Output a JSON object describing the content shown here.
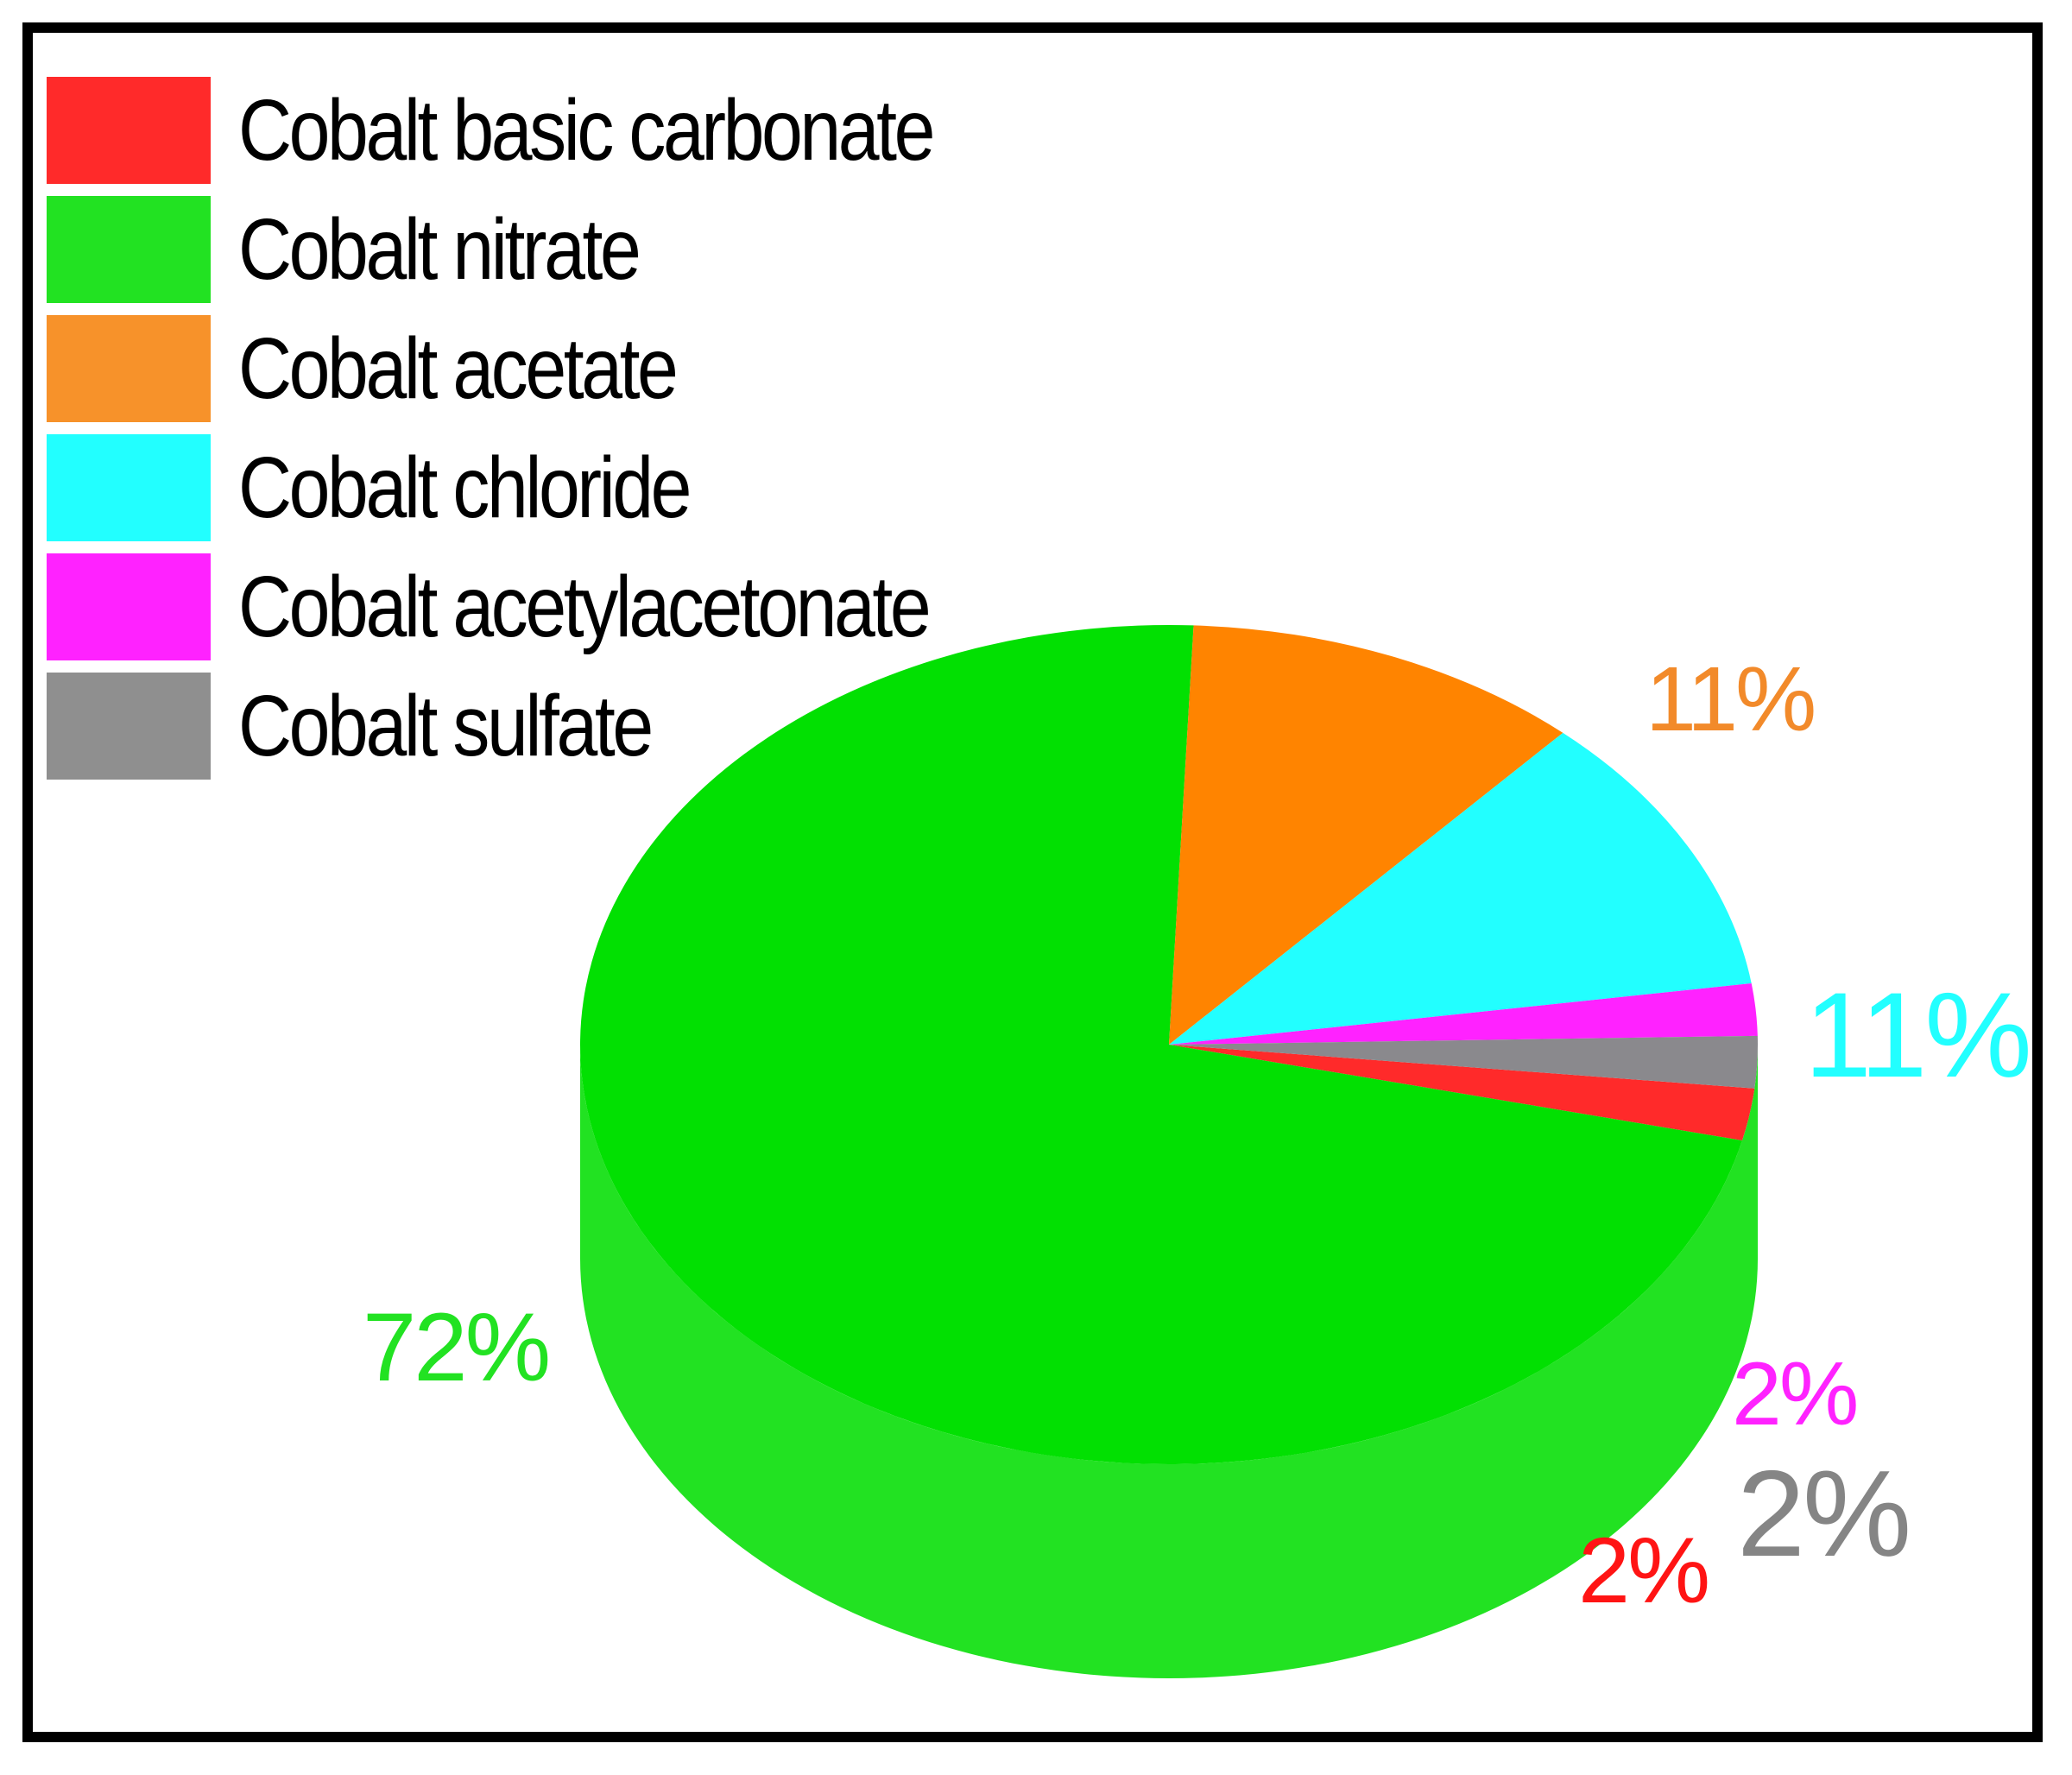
{
  "chart_data": {
    "type": "pie",
    "style": "3d",
    "legend_position": "top-left",
    "slices": [
      {
        "label": "Cobalt basic carbonate",
        "value": 2,
        "value_label": "2%",
        "color": "#ff2a2a",
        "side_color": "#ff0000"
      },
      {
        "label": "Cobalt nitrate",
        "value": 72,
        "value_label": "72%",
        "color": "#02e002",
        "side_color": "#22b800",
        "label_color": "#22e222"
      },
      {
        "label": "Cobalt acetate",
        "value": 11,
        "value_label": "11%",
        "color": "#ff8400",
        "side_color": "#f39a38",
        "label_color": "#f28a2a"
      },
      {
        "label": "Cobalt chloride",
        "value": 11,
        "value_label": "11%",
        "color": "#22ffff",
        "side_color": "#2bf4f4",
        "label_color": "#22ffff"
      },
      {
        "label": "Cobalt acetylacetonate",
        "value": 2,
        "value_label": "2%",
        "color": "#ff22ff",
        "side_color": "#ff22ff",
        "label_color": "#ff22ff"
      },
      {
        "label": "Cobalt sulfate",
        "value": 2,
        "value_label": "2%",
        "color": "#8a898d",
        "side_color": "#828287",
        "label_color": "#858585"
      }
    ]
  }
}
